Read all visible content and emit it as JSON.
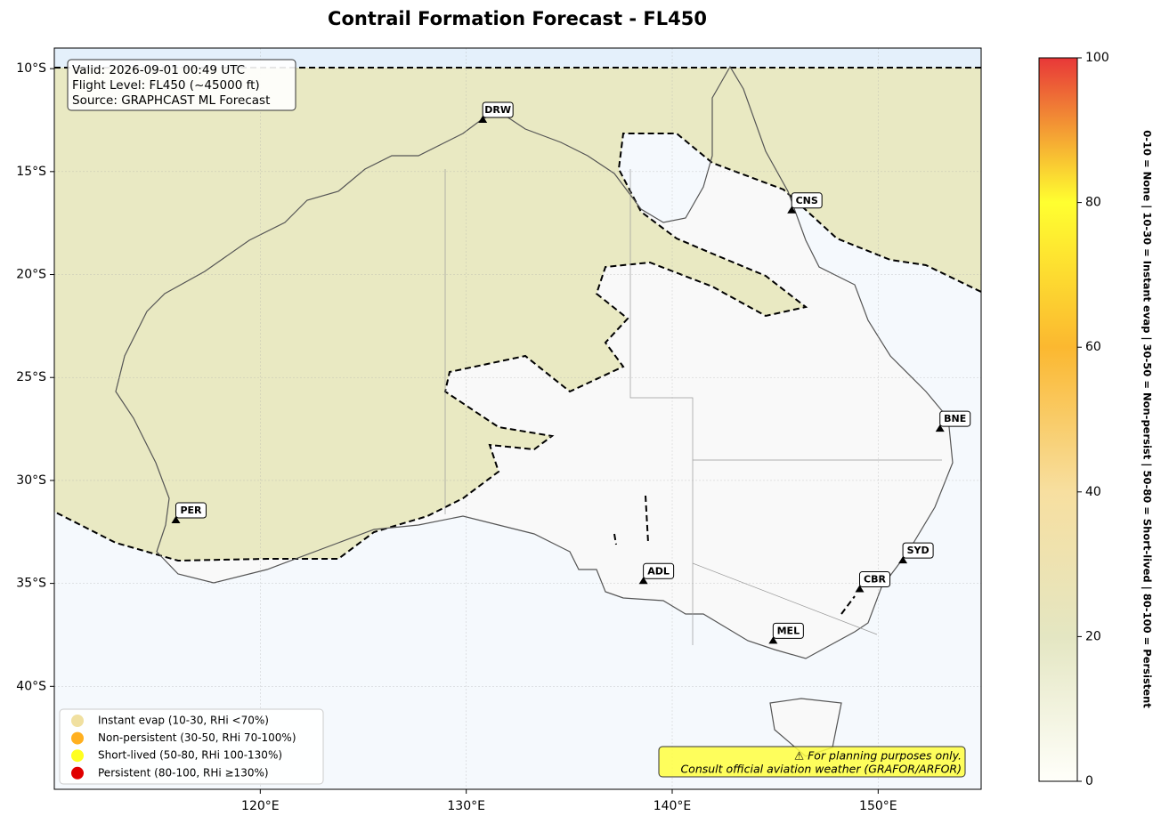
{
  "title": "Contrail Formation Forecast - FL450",
  "info": [
    "Valid: 2026-09-01 00:49 UTC",
    "Flight Level: FL450 (~45000 ft)",
    "Source: GRAPHCAST ML Forecast"
  ],
  "map": {
    "xlim": [
      110,
      155
    ],
    "ylim": [
      -45,
      -9
    ],
    "grid": true,
    "xticks": [
      {
        "value": 120,
        "label": "120°E"
      },
      {
        "value": 130,
        "label": "130°E"
      },
      {
        "value": 140,
        "label": "140°E"
      },
      {
        "value": 150,
        "label": "150°E"
      }
    ],
    "yticks": [
      {
        "value": -10,
        "label": "10°S"
      },
      {
        "value": -15,
        "label": "15°S"
      },
      {
        "value": -20,
        "label": "20°S"
      },
      {
        "value": -25,
        "label": "25°S"
      },
      {
        "value": -30,
        "label": "30°S"
      },
      {
        "value": -35,
        "label": "35°S"
      },
      {
        "value": -40,
        "label": "40°S"
      }
    ]
  },
  "cities": [
    {
      "label": "DRW",
      "lon": 130.8,
      "lat": -12.5
    },
    {
      "label": "CNS",
      "lon": 145.8,
      "lat": -16.9
    },
    {
      "label": "BNE",
      "lon": 153.0,
      "lat": -27.5
    },
    {
      "label": "SYD",
      "lon": 151.2,
      "lat": -33.9
    },
    {
      "label": "CBR",
      "lon": 149.1,
      "lat": -35.3
    },
    {
      "label": "MEL",
      "lon": 144.9,
      "lat": -37.8
    },
    {
      "label": "ADL",
      "lon": 138.6,
      "lat": -34.9
    },
    {
      "label": "PER",
      "lon": 115.9,
      "lat": -31.95
    }
  ],
  "legend": [
    {
      "label": "Instant evap (10-30, RHi <70%)",
      "color": "#f0e0a0"
    },
    {
      "label": "Non-persistent (30-50, RHi 70-100%)",
      "color": "#ffb020"
    },
    {
      "label": "Short-lived (50-80, RHi 100-130%)",
      "color": "#ffff20"
    },
    {
      "label": "Persistent (80-100, RHi ≥130%)",
      "color": "#e00000"
    }
  ],
  "colorbar": {
    "lim": [
      0,
      100
    ],
    "ticks": [
      0,
      20,
      40,
      60,
      80,
      100
    ],
    "colors": [
      "#fffffa",
      "#e4e6c2",
      "#f7dfa0",
      "#fbb830",
      "#ffff30",
      "#e83838"
    ],
    "label": "0-10 = None  |  10-30 = Instant evap  |  30-50 = Non-persist  |  50-80 = Short-lived  |  80-100 = Persistent"
  },
  "disclaimer": [
    "⚠ For planning purposes only.",
    "Consult official aviation weather (GRAFOR/ARFOR)"
  ]
}
